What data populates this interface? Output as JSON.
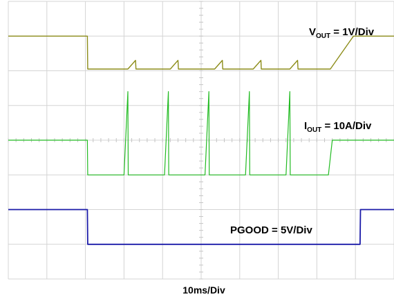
{
  "chart_data": {
    "type": "line",
    "title": "",
    "xlabel": "10ms/Div",
    "ylabel": "",
    "grid": true,
    "x_divisions": 10,
    "y_divisions": 8,
    "xlim_divisions": [
      0,
      10
    ],
    "channel_labels": [
      {
        "name": "V",
        "subscript": "OUT",
        "scale": " = 1V/Div"
      },
      {
        "name": "I",
        "subscript": "OUT",
        "scale": " = 10A/Div"
      },
      {
        "name": "PGOOD",
        "subscript": "",
        "scale": " = 5V/Div"
      }
    ],
    "series": [
      {
        "name": "VOUT",
        "color": "#8c8c18",
        "x_div": [
          0,
          2.05,
          2.06,
          2.2,
          3.1,
          3.3,
          3.31,
          4.2,
          4.4,
          4.41,
          5.35,
          5.55,
          5.56,
          6.35,
          6.55,
          6.56,
          7.3,
          7.5,
          7.51,
          8.35,
          8.95,
          10
        ],
        "y_div": [
          7.0,
          7.0,
          6.05,
          6.05,
          6.05,
          6.3,
          6.05,
          6.05,
          6.3,
          6.05,
          6.05,
          6.3,
          6.05,
          6.05,
          6.3,
          6.05,
          6.05,
          6.3,
          6.05,
          6.05,
          7.0,
          7.0
        ]
      },
      {
        "name": "IOUT",
        "color": "#22bb22",
        "x_div": [
          0,
          2.05,
          2.06,
          3.0,
          3.1,
          3.11,
          4.05,
          4.15,
          4.16,
          5.1,
          5.2,
          5.21,
          6.15,
          6.25,
          6.26,
          7.2,
          7.3,
          7.31,
          8.3,
          8.4,
          8.41,
          10
        ],
        "y_div": [
          4.0,
          4.0,
          3.0,
          3.0,
          5.4,
          3.0,
          3.0,
          5.4,
          3.0,
          3.0,
          5.4,
          3.0,
          3.0,
          5.4,
          3.0,
          3.0,
          5.4,
          3.0,
          3.0,
          4.0,
          4.0,
          4.0
        ]
      },
      {
        "name": "PGOOD",
        "color": "#1a1aa8",
        "x_div": [
          0,
          2.05,
          2.06,
          9.12,
          9.13,
          10
        ],
        "y_div": [
          2.0,
          2.0,
          1.0,
          1.0,
          2.0,
          2.0
        ]
      }
    ]
  }
}
